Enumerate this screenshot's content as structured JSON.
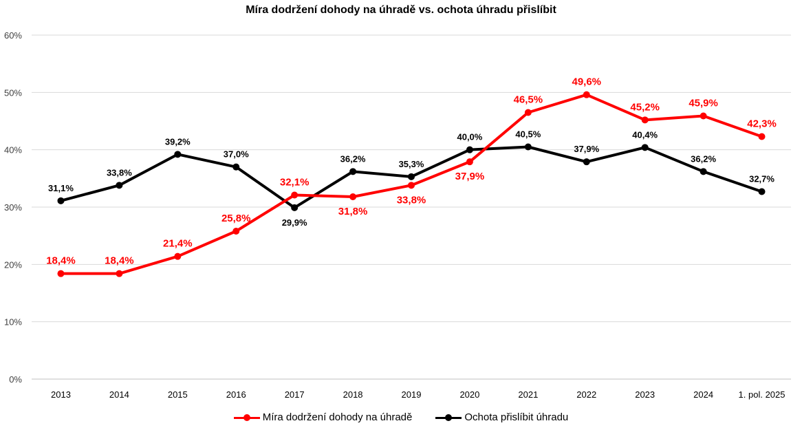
{
  "chart_data": {
    "type": "line",
    "title": "Míra dodržení dohody na úhradě vs. ochota úhradu přislíbit",
    "categories": [
      "2013",
      "2014",
      "2015",
      "2016",
      "2017",
      "2018",
      "2019",
      "2020",
      "2021",
      "2022",
      "2023",
      "2024",
      "1. pol. 2025"
    ],
    "series": [
      {
        "name": "Míra dodržení dohody na úhradě",
        "color": "#ff0000",
        "values": [
          18.4,
          18.4,
          21.4,
          25.8,
          32.1,
          31.8,
          33.8,
          37.9,
          46.5,
          49.6,
          45.2,
          45.9,
          42.3
        ],
        "labels": [
          "18,4%",
          "18,4%",
          "21,4%",
          "25,8%",
          "32,1%",
          "31,8%",
          "33,8%",
          "37,9%",
          "46,5%",
          "49,6%",
          "45,2%",
          "45,9%",
          "42,3%"
        ]
      },
      {
        "name": "Ochota přislíbit úhradu",
        "color": "#000000",
        "values": [
          31.1,
          33.8,
          39.2,
          37.0,
          29.9,
          36.2,
          35.3,
          40.0,
          40.5,
          37.9,
          40.4,
          36.2,
          32.7
        ],
        "labels": [
          "31,1%",
          "33,8%",
          "39,2%",
          "37,0%",
          "29,9%",
          "36,2%",
          "35,3%",
          "40,0%",
          "40,5%",
          "37,9%",
          "40,4%",
          "36,2%",
          "32,7%"
        ]
      }
    ],
    "y_ticks": [
      "0%",
      "10%",
      "20%",
      "30%",
      "40%",
      "50%",
      "60%"
    ],
    "ylim": [
      0,
      60
    ],
    "grid": true,
    "legend_position": "bottom"
  }
}
